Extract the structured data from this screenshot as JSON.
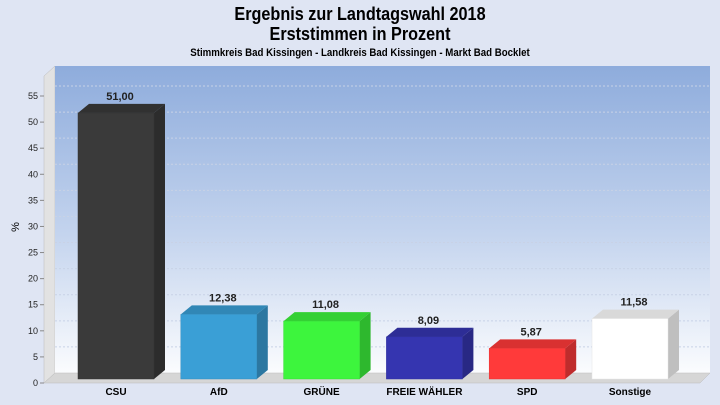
{
  "chart_data": {
    "type": "bar",
    "title": "Ergebnis zur Landtagswahl 2018",
    "subtitle": "Erststimmen in Prozent",
    "subtitle2": "Stimmkreis Bad Kissingen - Landkreis Bad Kissingen  - Markt Bad Bocklet",
    "xlabel": "",
    "ylabel": "%",
    "ylim": [
      0,
      58
    ],
    "yticks": [
      0,
      5,
      10,
      15,
      20,
      25,
      30,
      35,
      40,
      45,
      50,
      55
    ],
    "grid": true,
    "categories": [
      "CSU",
      "AfD",
      "GRÜNE",
      "FREIE WÄHLER",
      "SPD",
      "Sonstige"
    ],
    "values": [
      51.0,
      12.38,
      11.08,
      8.09,
      5.87,
      11.58
    ],
    "value_labels": [
      "51,00",
      "12,38",
      "11,08",
      "8,09",
      "5,87",
      "11,58"
    ],
    "colors": [
      "#3a3a3a",
      "#3a9fd6",
      "#3df53d",
      "#3535b0",
      "#ff3a3a",
      "#ffffff"
    ]
  }
}
